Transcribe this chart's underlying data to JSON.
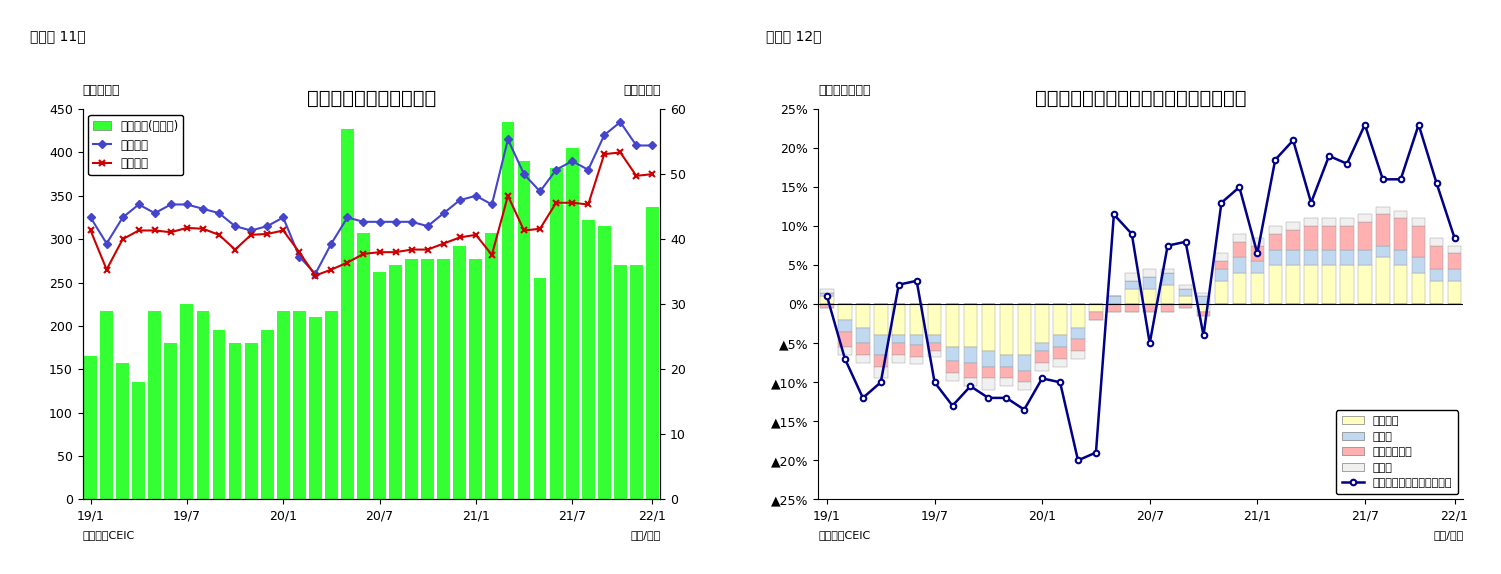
{
  "chart1": {
    "title": "シンガポール　貳易収支",
    "subtitle": "（図表 11）",
    "ylabel_left": "（億ドル）",
    "ylabel_right": "（億ドル）",
    "xlabel": "（年/月）",
    "source": "（資料）CEIC",
    "xtick_labels": [
      "19/1",
      "19/7",
      "20/1",
      "20/7",
      "21/1",
      "21/7",
      "22/1"
    ],
    "ylim_left": [
      0,
      450
    ],
    "ylim_right": [
      0,
      60
    ],
    "yticks_left": [
      0,
      50,
      100,
      150,
      200,
      250,
      300,
      350,
      400,
      450
    ],
    "yticks_right": [
      0,
      10,
      20,
      30,
      40,
      50,
      60
    ],
    "bar_color": "#33FF33",
    "line1_color": "#4444CC",
    "line2_color": "#CC0000",
    "legend_bar": "貳易収支(右目盛)",
    "legend_export": "総輸出額",
    "legend_import": "総輸入額",
    "trade_balance": [
      22,
      29,
      21,
      18,
      29,
      24,
      30,
      29,
      26,
      24,
      24,
      26,
      29,
      29,
      28,
      29,
      57,
      41,
      35,
      36,
      37,
      37,
      37,
      39,
      37,
      41,
      58,
      52,
      34,
      51,
      54,
      43,
      42,
      36,
      36,
      45
    ],
    "exports": [
      325,
      295,
      325,
      340,
      330,
      340,
      340,
      335,
      330,
      315,
      310,
      315,
      325,
      280,
      260,
      295,
      325,
      320,
      320,
      320,
      320,
      315,
      330,
      345,
      350,
      340,
      415,
      375,
      355,
      380,
      390,
      380,
      420,
      435,
      408,
      408
    ],
    "imports": [
      310,
      265,
      300,
      310,
      310,
      308,
      313,
      312,
      305,
      288,
      305,
      306,
      310,
      285,
      258,
      265,
      273,
      283,
      285,
      285,
      288,
      288,
      295,
      302,
      305,
      282,
      350,
      310,
      312,
      342,
      342,
      340,
      398,
      400,
      373,
      375
    ]
  },
  "chart2": {
    "title": "シンガポール　輸出の伸び率（品目別）",
    "subtitle": "（図表 12）",
    "ylabel_left": "（前年同期比）",
    "xlabel": "（年/月）",
    "source": "（資料）CEIC",
    "xtick_labels": [
      "19/1",
      "19/7",
      "20/1",
      "20/7",
      "21/1",
      "21/7",
      "22/1"
    ],
    "ylim": [
      -0.25,
      0.25
    ],
    "yticks": [
      -0.25,
      -0.2,
      -0.15,
      -0.1,
      -0.05,
      0.0,
      0.05,
      0.1,
      0.15,
      0.2,
      0.25
    ],
    "ytick_labels": [
      "▲25%",
      "▲20%",
      "▲15%",
      "▲10%",
      "▲5%",
      "0%",
      "5%",
      "10%",
      "15%",
      "20%",
      "25%"
    ],
    "color_electronics": "#FFFFC0",
    "color_pharma": "#C0D8F0",
    "color_petrochem": "#FFB0B0",
    "color_other": "#F0F0F0",
    "color_line": "#000088",
    "legend_elec": "電子製品",
    "legend_pharma": "医薬品",
    "legend_petro": "石油化学製品",
    "legend_other": "その他",
    "legend_noe": "非石油輸出（再輸出除く）",
    "electronics": [
      0.01,
      -0.02,
      -0.03,
      -0.04,
      -0.04,
      -0.04,
      -0.04,
      -0.055,
      -0.055,
      -0.06,
      -0.065,
      -0.065,
      -0.05,
      -0.04,
      -0.03,
      -0.01,
      0.0,
      0.02,
      0.02,
      0.025,
      0.01,
      -0.01,
      0.03,
      0.04,
      0.04,
      0.05,
      0.05,
      0.05,
      0.05,
      0.05,
      0.05,
      0.06,
      0.05,
      0.04,
      0.03,
      0.03
    ],
    "pharma": [
      0.005,
      -0.015,
      -0.02,
      -0.025,
      -0.01,
      -0.012,
      -0.01,
      -0.018,
      -0.02,
      -0.02,
      -0.015,
      -0.02,
      -0.01,
      -0.015,
      -0.015,
      0.0,
      0.01,
      0.01,
      0.015,
      0.015,
      0.01,
      0.01,
      0.015,
      0.02,
      0.015,
      0.02,
      0.02,
      0.02,
      0.02,
      0.02,
      0.02,
      0.015,
      0.02,
      0.02,
      0.015,
      0.015
    ],
    "petrochem": [
      -0.005,
      -0.02,
      -0.015,
      -0.015,
      -0.015,
      -0.015,
      -0.01,
      -0.015,
      -0.02,
      -0.015,
      -0.015,
      -0.015,
      -0.015,
      -0.015,
      -0.015,
      -0.01,
      -0.01,
      -0.01,
      -0.01,
      -0.01,
      -0.005,
      -0.005,
      0.01,
      0.02,
      0.02,
      0.02,
      0.025,
      0.03,
      0.03,
      0.03,
      0.035,
      0.04,
      0.04,
      0.04,
      0.03,
      0.02
    ],
    "other": [
      0.005,
      -0.01,
      -0.01,
      -0.015,
      -0.01,
      -0.01,
      -0.008,
      -0.01,
      -0.01,
      -0.015,
      -0.01,
      -0.01,
      -0.01,
      -0.01,
      -0.01,
      0.0,
      0.0,
      0.01,
      0.01,
      0.005,
      0.005,
      0.005,
      0.01,
      0.01,
      0.01,
      0.01,
      0.01,
      0.01,
      0.01,
      0.01,
      0.01,
      0.01,
      0.01,
      0.01,
      0.01,
      0.01
    ],
    "non_oil_exports": [
      0.01,
      -0.07,
      -0.12,
      -0.1,
      0.025,
      0.03,
      -0.1,
      -0.13,
      -0.105,
      -0.12,
      -0.12,
      -0.135,
      -0.095,
      -0.1,
      -0.2,
      -0.19,
      0.115,
      0.09,
      -0.05,
      0.075,
      0.08,
      -0.04,
      0.13,
      0.15,
      0.065,
      0.185,
      0.21,
      0.13,
      0.19,
      0.18,
      0.23,
      0.16,
      0.16,
      0.23,
      0.155,
      0.085
    ]
  }
}
